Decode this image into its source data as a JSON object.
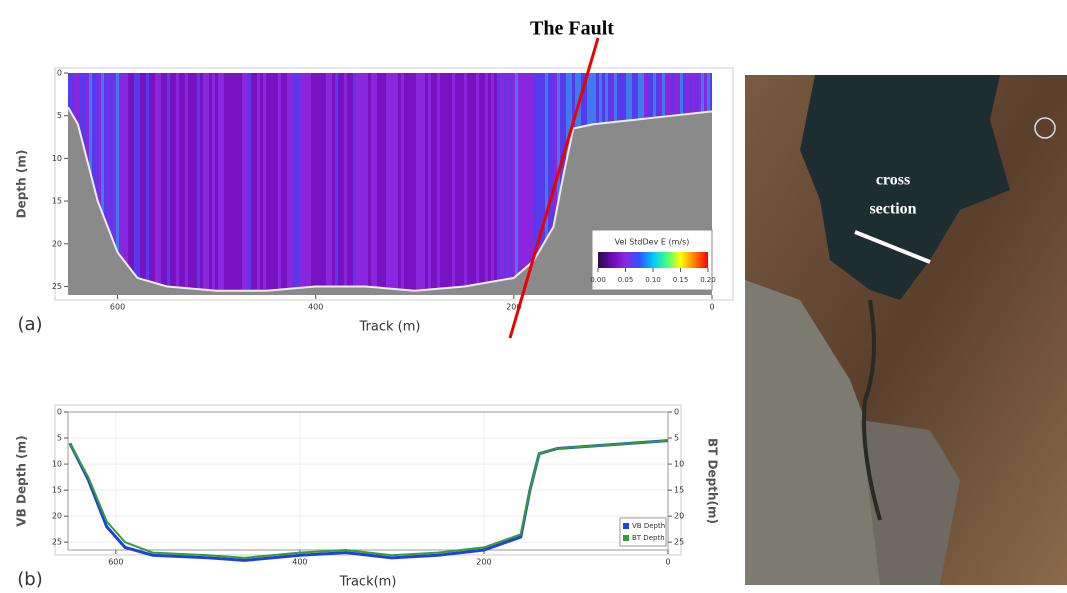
{
  "title": "The Fault",
  "chart_data": [
    {
      "type": "heatmap",
      "panel_label": "(a)",
      "xlabel": "Track (m)",
      "ylabel": "Depth (m)",
      "xlim": [
        650,
        0
      ],
      "xticks": [
        600,
        400,
        200,
        0
      ],
      "ylim": [
        0,
        26
      ],
      "yticks": [
        0,
        5,
        10,
        15,
        20,
        25
      ],
      "x": [
        650,
        640,
        620,
        600,
        580,
        550,
        500,
        450,
        400,
        350,
        300,
        250,
        200,
        180,
        160,
        150,
        140,
        120,
        80,
        40,
        0
      ],
      "values": [
        4,
        6,
        15,
        21,
        24,
        25,
        25.5,
        25.5,
        25,
        25,
        25.5,
        25,
        24,
        22,
        18,
        12,
        6.5,
        6,
        5.5,
        5,
        4.5
      ],
      "color": "#8a8a8a",
      "colorbar": {
        "title": "Vel StdDev E (m/s)",
        "lim": [
          0,
          0.2
        ],
        "ticks": [
          {
            "value": 0,
            "label": "0.00"
          },
          {
            "value": 0.05,
            "label": "0.05"
          },
          {
            "value": 0.1,
            "label": "0.10"
          },
          {
            "value": 0.15,
            "label": "0.15"
          },
          {
            "value": 0.2,
            "label": "0.20"
          }
        ],
        "colors": [
          "#2a0a50",
          "#6a0ab0",
          "#8a2be2",
          "#3050ff",
          "#00c8ff",
          "#40ff80",
          "#ffff00",
          "#ff8000",
          "#ff0000"
        ]
      }
    },
    {
      "type": "line",
      "panel_label": "(b)",
      "xlabel": "Track(m)",
      "ylabel": "VB Depth (m)",
      "y2label": "BT Depth(m)",
      "xlim": [
        652,
        0
      ],
      "xticks": [
        600,
        400,
        200,
        0
      ],
      "ylim": [
        0,
        26.5
      ],
      "yticks": [
        0,
        5,
        10,
        15,
        20,
        25
      ],
      "y2lim": [
        0,
        26.5
      ],
      "y2ticks": [
        0,
        5,
        10,
        15,
        20,
        25
      ],
      "grid": true,
      "legend": "lower right",
      "x": [
        650,
        630,
        610,
        590,
        560,
        500,
        460,
        400,
        350,
        300,
        250,
        200,
        160,
        150,
        140,
        120,
        80,
        40,
        0
      ],
      "series": [
        {
          "name": "VB Depth",
          "color": "#2040e0",
          "values": [
            6,
            13,
            22,
            26,
            27.5,
            28,
            28.5,
            27.5,
            27,
            28,
            27.5,
            26.5,
            24,
            15,
            8,
            7,
            6.5,
            6,
            5.5
          ]
        },
        {
          "name": "BT Depth",
          "color": "#30a030",
          "axis": "y2",
          "values": [
            6,
            12.5,
            21,
            25,
            27,
            27.5,
            28,
            27,
            26.5,
            27.5,
            27,
            26,
            23.5,
            15,
            8,
            7,
            6.5,
            6,
            5.5
          ]
        }
      ]
    }
  ],
  "map": {
    "label": [
      "cross",
      "section"
    ]
  }
}
